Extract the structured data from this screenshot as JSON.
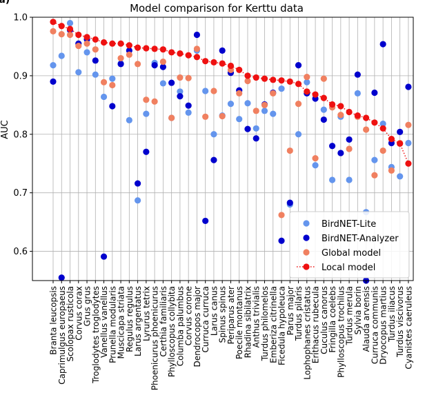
{
  "panel_label": "(a)",
  "chart_data": {
    "type": "scatter",
    "title": "Model comparison for Kerttu data",
    "xlabel": "",
    "ylabel": "AUC",
    "ylim": [
      0.55,
      1.0
    ],
    "yticks": [
      0.6,
      0.7,
      0.8,
      0.9,
      1.0
    ],
    "ytick_labels": [
      "0.6",
      "0.7",
      "0.8",
      "0.9",
      "1.0"
    ],
    "grid": true,
    "legend_position": "lower-right",
    "categories": [
      "Branta leucopsis",
      "Caprimulgus europaeus",
      "Scolopax rusticola",
      "Corvus corax",
      "Grus grus",
      "Troglodytes troglodytes",
      "Vanellus vanellus",
      "Prunella modularis",
      "Muscicapa striata",
      "Regulus regulus",
      "Larus argentatus",
      "Lyrurus tetrix",
      "Phoenicurus phoenicurus",
      "Certhia familiaris",
      "Phylloscopus collybita",
      "Columba palumbus",
      "Corvus corone",
      "Dendrocopos major",
      "Curruca curruca",
      "Larus canus",
      "Spinus spinus",
      "Periparus ater",
      "Poecile montanus",
      "Rhadina sibilatrix",
      "Anthus trivialis",
      "Turdus philomelos",
      "Emberiza citrinella",
      "Ficedula hypoleuca",
      "Parus major",
      "Turdus pilaris",
      "Lophophanes cristatus",
      "Erithacus rubecula",
      "Cuculus canorus",
      "Fringilla coelebs",
      "Phylloscopus trochilus",
      "Turdus merula",
      "Sylvia borin",
      "Alauda arvensis",
      "Curruca communis",
      "Dryocopus martius",
      "Turdus iliacus",
      "Turdus viscivorus",
      "Cyanistes caeruleus"
    ],
    "series": [
      {
        "name": "BirdNET-Lite",
        "color": "#6495ed",
        "marker": "circle",
        "values": [
          0.918,
          0.934,
          0.99,
          0.906,
          0.94,
          0.902,
          0.864,
          0.895,
          0.921,
          0.824,
          0.687,
          0.835,
          0.922,
          0.887,
          0.828,
          0.873,
          0.837,
          0.943,
          0.874,
          0.8,
          0.832,
          0.852,
          0.826,
          0.853,
          0.81,
          0.84,
          0.835,
          0.878,
          0.68,
          0.8,
          0.889,
          0.747,
          0.842,
          0.722,
          0.83,
          0.722,
          0.87,
          0.667,
          0.756,
          0.818,
          0.744,
          0.728,
          0.785
        ]
      },
      {
        "name": "BirdNET-Analyzer",
        "color": "#0000cd",
        "marker": "circle",
        "values": [
          0.89,
          0.555,
          0.978,
          0.955,
          0.962,
          0.926,
          0.591,
          0.848,
          0.92,
          0.943,
          0.716,
          0.77,
          0.918,
          0.915,
          0.888,
          0.865,
          0.849,
          0.97,
          0.652,
          0.756,
          0.943,
          0.905,
          0.875,
          0.809,
          0.793,
          0.851,
          0.871,
          0.618,
          0.683,
          0.918,
          0.87,
          0.861,
          0.825,
          0.78,
          0.768,
          0.791,
          0.902,
          0.55,
          0.871,
          0.954,
          0.785,
          0.804,
          0.881
        ]
      },
      {
        "name": "Global model",
        "color": "#f08060",
        "marker": "circle",
        "values": [
          0.976,
          0.971,
          0.97,
          0.951,
          0.955,
          0.945,
          0.889,
          0.884,
          0.93,
          0.936,
          0.92,
          0.859,
          0.856,
          0.924,
          0.828,
          0.897,
          0.896,
          0.946,
          0.83,
          0.874,
          0.831,
          0.91,
          0.87,
          0.891,
          0.84,
          0.85,
          0.87,
          0.662,
          0.772,
          0.852,
          0.898,
          0.759,
          0.895,
          0.846,
          0.833,
          0.775,
          0.83,
          0.808,
          0.73,
          0.772,
          0.738,
          0.785,
          0.816
        ]
      },
      {
        "name": "Local model",
        "color": "#ee1111",
        "marker": "circle",
        "line_style": "dotted",
        "values": [
          0.992,
          0.985,
          0.98,
          0.97,
          0.966,
          0.962,
          0.957,
          0.955,
          0.955,
          0.952,
          0.948,
          0.947,
          0.946,
          0.945,
          0.94,
          0.938,
          0.935,
          0.932,
          0.925,
          0.923,
          0.921,
          0.917,
          0.91,
          0.9,
          0.897,
          0.895,
          0.893,
          0.892,
          0.89,
          0.886,
          0.873,
          0.868,
          0.862,
          0.851,
          0.848,
          0.838,
          0.832,
          0.828,
          0.82,
          0.81,
          0.792,
          0.784,
          0.75
        ]
      }
    ]
  }
}
